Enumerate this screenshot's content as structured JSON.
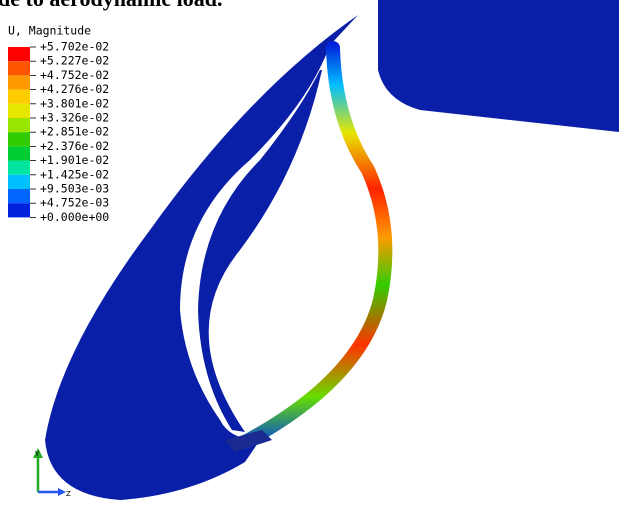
{
  "caption": "de to aerodynamic load.",
  "legend": {
    "title": "U, Magnitude",
    "labels": [
      "+5.702e-02",
      "+5.227e-02",
      "+4.752e-02",
      "+4.276e-02",
      "+3.801e-02",
      "+3.326e-02",
      "+2.851e-02",
      "+2.376e-02",
      "+1.901e-02",
      "+1.425e-02",
      "+9.503e-03",
      "+4.752e-03",
      "+0.000e+00"
    ],
    "colors": [
      "#ff0000",
      "#ff5500",
      "#ff9900",
      "#ffcc00",
      "#e6e600",
      "#99e600",
      "#33cc00",
      "#00cc33",
      "#00e6a0",
      "#00bfff",
      "#0066ff",
      "#0022dd"
    ]
  },
  "triad": {
    "vertical": "Y",
    "horizontal": "Z"
  }
}
